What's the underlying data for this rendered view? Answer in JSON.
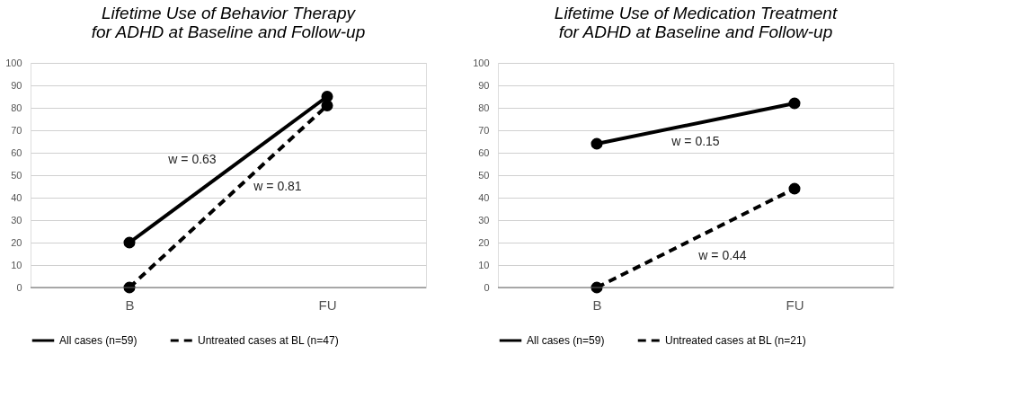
{
  "chart_data": [
    {
      "type": "line",
      "title": "Lifetime Use of Behavior Therapy for ADHD at Baseline and Follow-up",
      "categories": [
        "B",
        "FU"
      ],
      "series": [
        {
          "name": "All cases (n=59)",
          "color": "#000000",
          "values": [
            20,
            85
          ],
          "line_style": "solid"
        },
        {
          "name": "Untreated cases at BL (n=47)",
          "color": "#000000",
          "values": [
            0,
            81
          ],
          "line_style": "dashed"
        }
      ],
      "annotations": [
        "w = 0.63",
        "w = 0.81"
      ],
      "ylim": [
        0,
        100
      ],
      "yticks": [
        0,
        10,
        20,
        30,
        40,
        50,
        60,
        70,
        80,
        90,
        100
      ],
      "grid": "y",
      "legend": "bottom",
      "marker": "circle"
    },
    {
      "type": "line",
      "title": "Lifetime Use of Medication Treatment for ADHD at Baseline and Follow-up",
      "categories": [
        "B",
        "FU"
      ],
      "series": [
        {
          "name": "All cases (n=59)",
          "color": "#000000",
          "values": [
            64,
            82
          ],
          "line_style": "solid"
        },
        {
          "name": "Untreated cases at BL (n=21)",
          "color": "#000000",
          "values": [
            0,
            44
          ],
          "line_style": "dashed"
        }
      ],
      "annotations": [
        "w = 0.15",
        "w = 0.44"
      ],
      "ylim": [
        0,
        100
      ],
      "yticks": [
        0,
        10,
        20,
        30,
        40,
        50,
        60,
        70,
        80,
        90,
        100
      ],
      "grid": "y",
      "legend": "bottom",
      "marker": "circle"
    }
  ]
}
